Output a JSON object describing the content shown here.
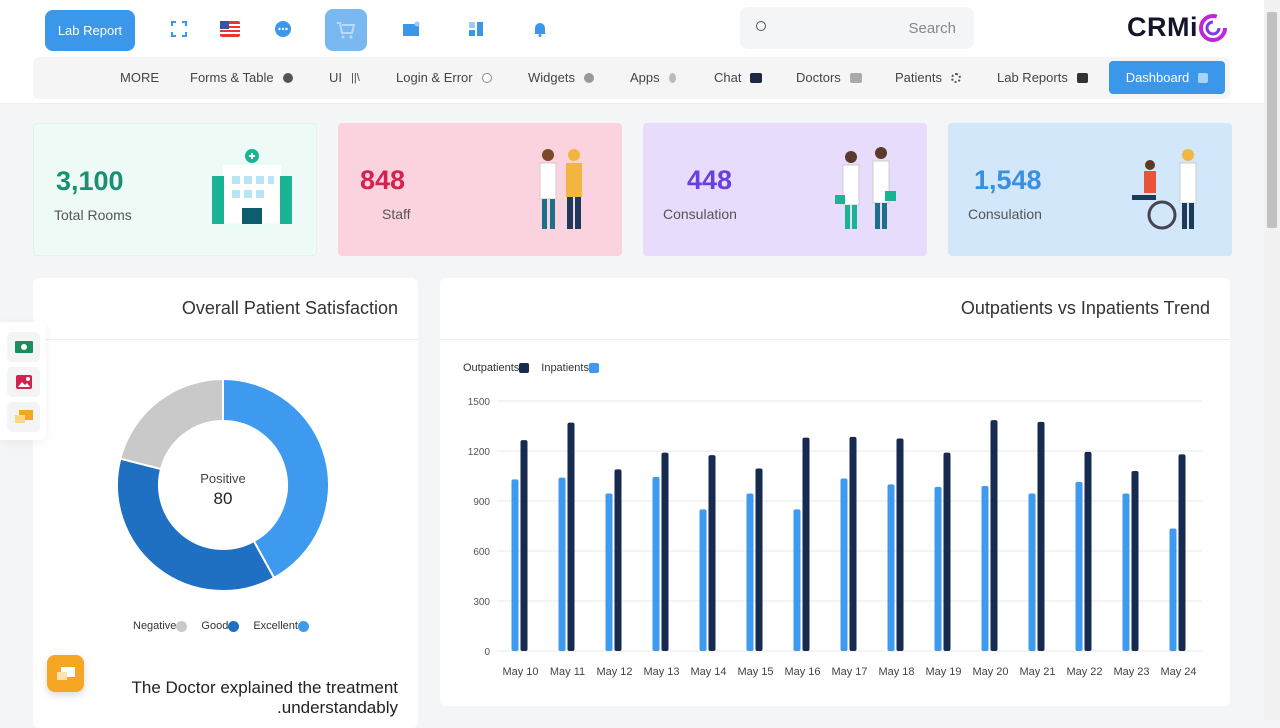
{
  "header": {
    "lab_report_label": "Lab Report",
    "search_placeholder": "Search",
    "logo_text": "CRMi",
    "icons": [
      "fullscreen-icon",
      "us-flag-icon",
      "chat-bubble-icon",
      "cart-icon",
      "folder-icon",
      "grid-icon",
      "bell-icon"
    ]
  },
  "nav": {
    "items": [
      {
        "label": "MORE"
      },
      {
        "label": "Forms & Table",
        "icon": "cube-icon"
      },
      {
        "label": "UI",
        "icon": "library-icon"
      },
      {
        "label": "Login & Error",
        "icon": "lock-icon"
      },
      {
        "label": "Widgets",
        "icon": "widget-icon"
      },
      {
        "label": "Apps",
        "icon": "bulb-icon"
      },
      {
        "label": "Chat",
        "icon": "chat-icon"
      },
      {
        "label": "Doctors",
        "icon": "pulse-icon"
      },
      {
        "label": "Patients",
        "icon": "nodes-icon"
      },
      {
        "label": "Lab Reports",
        "icon": "toggle-icon"
      }
    ],
    "active": {
      "label": "Dashboard",
      "icon": "dashboard-icon"
    }
  },
  "stats": [
    {
      "value": "3,100",
      "label": "Total Rooms",
      "color": "#1a8f74",
      "bg": "#edfaf6"
    },
    {
      "value": "848",
      "label": "Staff",
      "color": "#d6204e",
      "bg": "#fbd3de"
    },
    {
      "value": "448",
      "label": "Consulation",
      "color": "#6a3fe0",
      "bg": "#e7dcfb"
    },
    {
      "value": "1,548",
      "label": "Consulation",
      "color": "#3a8fe0",
      "bg": "#d3e7fb"
    }
  ],
  "satisfaction": {
    "title": "Overall Patient Satisfaction",
    "center_label": "Positive",
    "center_value": "80",
    "quote": "The Doctor explained the treatment .understandably",
    "chart_data": {
      "type": "pie",
      "donut": true,
      "slices": [
        {
          "name": "Excellent",
          "value": 42,
          "color": "#3d9aee"
        },
        {
          "name": "Good",
          "value": 37,
          "color": "#1f6fc2"
        },
        {
          "name": "Negative",
          "value": 21,
          "color": "#c9c9c9"
        }
      ],
      "legend": [
        "Negative",
        "Good",
        "Excellent"
      ],
      "legend_placement": "bottom"
    }
  },
  "trend": {
    "title": "Outpatients vs Inpatients Trend",
    "chart_data": {
      "type": "bar",
      "categories": [
        "May 10",
        "May 11",
        "May 12",
        "May 13",
        "May 14",
        "May 15",
        "May 16",
        "May 17",
        "May 18",
        "May 19",
        "May 20",
        "May 21",
        "May 22",
        "May 23",
        "May 24"
      ],
      "series": [
        {
          "name": "Inpatients",
          "color": "#3d9aee",
          "values": [
            1030,
            1040,
            945,
            1045,
            850,
            945,
            850,
            1035,
            1000,
            985,
            990,
            945,
            1015,
            945,
            735
          ]
        },
        {
          "name": "Outpatients",
          "color": "#172a4f",
          "values": [
            1265,
            1370,
            1090,
            1190,
            1175,
            1095,
            1280,
            1285,
            1275,
            1190,
            1385,
            1375,
            1195,
            1080,
            1180
          ]
        }
      ],
      "legend": [
        "Outpatients",
        "Inpatients"
      ],
      "legend_placement": "top-left",
      "yticks": [
        0,
        300,
        600,
        900,
        1200,
        1500
      ],
      "ylim": [
        0,
        1500
      ],
      "grid": true
    }
  },
  "side_icons": [
    "money-icon",
    "image-icon",
    "chat-stack-icon"
  ],
  "fab_icon": "chat-stack-icon"
}
